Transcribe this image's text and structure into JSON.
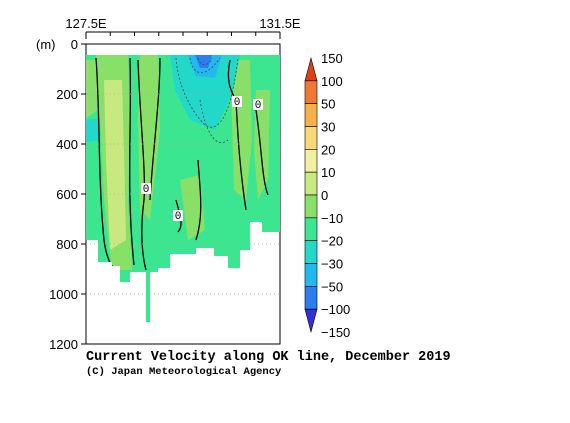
{
  "chart_data": {
    "type": "heatmap",
    "title": "Current Velocity along OK line, December 2019",
    "credit": "(C) Japan Meteorological Agency",
    "ylabel": "(m)",
    "x_ticks": [
      "127.5E",
      "131.5E"
    ],
    "xlim": [
      127.5,
      131.5
    ],
    "ylim": [
      0,
      1200
    ],
    "y_ticks": [
      0,
      200,
      400,
      600,
      800,
      1000,
      1200
    ],
    "y_tick_labels": [
      "0",
      "200",
      "400",
      "600",
      "800",
      "1000",
      "1200"
    ],
    "colorbar": {
      "levels": [
        -150,
        -100,
        -50,
        -30,
        -20,
        -10,
        0,
        10,
        20,
        30,
        50,
        100,
        150
      ],
      "labels": [
        "150",
        "100",
        "50",
        "30",
        "20",
        "10",
        "0",
        "−10",
        "−20",
        "−30",
        "−50",
        "−100",
        "−150"
      ],
      "colors": [
        "#3030d8",
        "#2c7ef0",
        "#22b8f0",
        "#22d8c8",
        "#3ce690",
        "#88e068",
        "#c8e880",
        "#f0f0a0",
        "#f8d878",
        "#f8b048",
        "#f07830",
        "#e04018"
      ]
    },
    "contour_labels": [
      "0",
      "0",
      "0",
      "0"
    ],
    "grid": true
  }
}
